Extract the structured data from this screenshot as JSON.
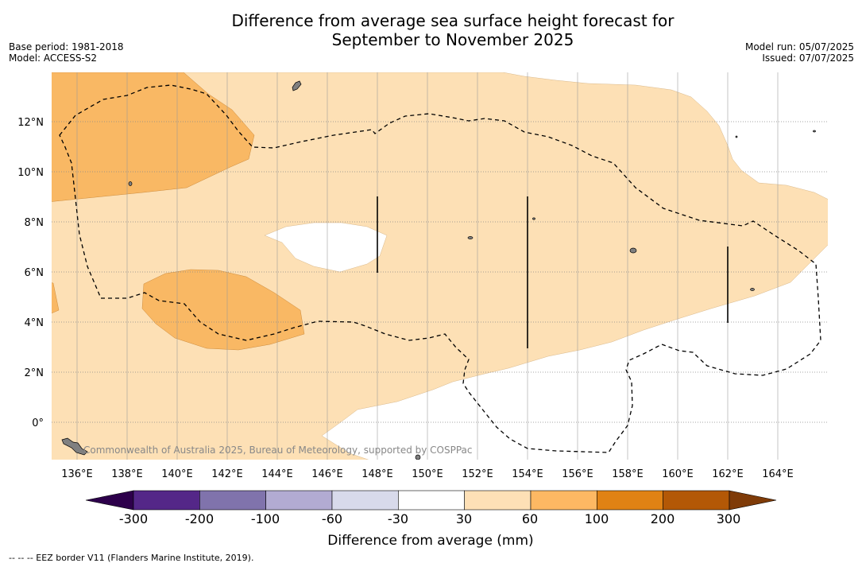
{
  "title_line1": "Difference from average sea surface height forecast for",
  "title_line2": "September to November 2025",
  "base_period": "Base period: 1981-2018",
  "model": "Model: ACCESS-S2",
  "model_run": "Model run: 05/07/2025",
  "issued": "Issued: 07/07/2025",
  "copyright": "Commonwealth of Australia 2025, Bureau of Meteorology, supported by COSPPac",
  "footer_note": "--  --  -- EEZ border V11 (Flanders Marine Institute, 2019).",
  "map": {
    "lon_range": [
      135,
      166
    ],
    "lat_range": [
      -1.5,
      14
    ],
    "lon_ticks": [
      "136°E",
      "138°E",
      "140°E",
      "142°E",
      "144°E",
      "146°E",
      "148°E",
      "150°E",
      "152°E",
      "154°E",
      "156°E",
      "158°E",
      "160°E",
      "162°E",
      "164°E"
    ],
    "lat_ticks": [
      "0°",
      "2°N",
      "4°N",
      "6°N",
      "8°N",
      "10°N",
      "12°N"
    ],
    "colors": {
      "class_30_60": "#fde0b5",
      "class_60_100": "#f9b864",
      "land": "#808080",
      "eez": "#000000"
    }
  },
  "colorbar": {
    "label": "Difference from average (mm)",
    "ticks": [
      "-300",
      "-200",
      "-100",
      "-60",
      "-30",
      "30",
      "60",
      "100",
      "200",
      "300"
    ],
    "colors": [
      "#542788",
      "#8073ac",
      "#b2abd2",
      "#d8daeb",
      "#ffffff",
      "#fee0b6",
      "#fdb863",
      "#e08214",
      "#b35806"
    ],
    "under_color": "#2d004b",
    "over_color": "#7f3b08"
  }
}
